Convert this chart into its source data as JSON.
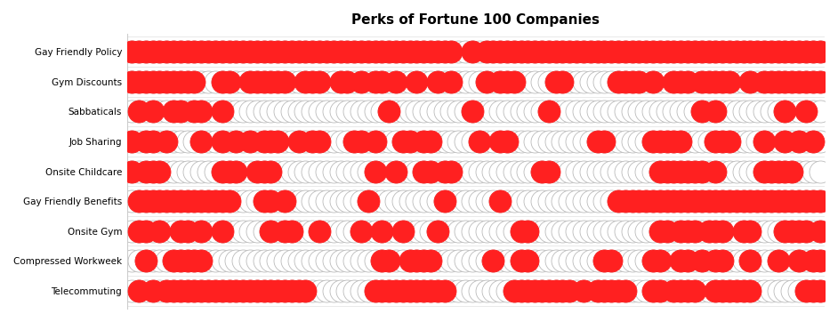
{
  "title": "Perks of Fortune 100 Companies",
  "title_fontsize": 11,
  "categories": [
    "Gay Friendly Policy",
    "Gym Discounts",
    "Sabbaticals",
    "Job Sharing",
    "Onsite Childcare",
    "Gay Friendly Benefits",
    "Onsite Gym",
    "Compressed Workweek",
    "Telecommuting"
  ],
  "n_companies": 100,
  "filled_color": "#FF2020",
  "empty_color": "#FFFFFF",
  "edge_color": "#BBBBBB",
  "marker_size": 18,
  "binary_data": {
    "Gay Friendly Policy": [
      1,
      1,
      1,
      1,
      1,
      1,
      1,
      1,
      1,
      1,
      1,
      1,
      1,
      1,
      1,
      1,
      1,
      1,
      1,
      1,
      1,
      1,
      1,
      1,
      1,
      1,
      1,
      1,
      1,
      1,
      1,
      1,
      1,
      1,
      1,
      1,
      1,
      1,
      1,
      1,
      1,
      1,
      1,
      1,
      1,
      1,
      1,
      0,
      0,
      1,
      0,
      1,
      1,
      1,
      1,
      1,
      1,
      1,
      1,
      1,
      1,
      1,
      1,
      1,
      1,
      1,
      1,
      1,
      1,
      1,
      1,
      1,
      1,
      1,
      1,
      1,
      1,
      1,
      1,
      1,
      1,
      1,
      1,
      1,
      1,
      1,
      1,
      1,
      1,
      1,
      1,
      1,
      1,
      1,
      1,
      1,
      1,
      1,
      1,
      1
    ],
    "Gym Discounts": [
      1,
      1,
      1,
      1,
      1,
      1,
      1,
      1,
      1,
      1,
      0,
      0,
      0,
      1,
      1,
      0,
      0,
      1,
      1,
      1,
      1,
      1,
      1,
      0,
      0,
      1,
      1,
      1,
      0,
      0,
      1,
      1,
      0,
      1,
      0,
      1,
      1,
      0,
      1,
      0,
      0,
      1,
      0,
      0,
      1,
      0,
      1,
      0,
      0,
      0,
      0,
      1,
      0,
      1,
      1,
      1,
      0,
      0,
      0,
      0,
      0,
      1,
      1,
      0,
      0,
      0,
      0,
      0,
      0,
      0,
      1,
      1,
      1,
      1,
      0,
      1,
      0,
      0,
      1,
      1,
      1,
      0,
      1,
      1,
      1,
      1,
      1,
      0,
      0,
      1,
      0,
      1,
      1,
      1,
      1,
      1,
      1,
      1,
      1,
      1
    ],
    "Sabbaticals": [
      0,
      1,
      0,
      1,
      0,
      0,
      1,
      1,
      0,
      1,
      1,
      0,
      0,
      1,
      0,
      0,
      0,
      0,
      0,
      0,
      0,
      0,
      0,
      0,
      0,
      0,
      0,
      0,
      0,
      0,
      0,
      0,
      0,
      0,
      0,
      0,
      0,
      1,
      0,
      0,
      0,
      0,
      0,
      0,
      0,
      0,
      0,
      0,
      0,
      1,
      0,
      0,
      0,
      0,
      0,
      0,
      0,
      0,
      0,
      0,
      1,
      0,
      0,
      0,
      0,
      0,
      0,
      0,
      0,
      0,
      0,
      0,
      0,
      0,
      0,
      0,
      0,
      0,
      0,
      0,
      0,
      0,
      1,
      0,
      1,
      0,
      0,
      0,
      0,
      0,
      0,
      0,
      0,
      0,
      1,
      0,
      0,
      1,
      0,
      0
    ],
    "Job Sharing": [
      1,
      0,
      1,
      1,
      0,
      1,
      0,
      0,
      0,
      0,
      1,
      0,
      0,
      1,
      0,
      1,
      0,
      1,
      0,
      1,
      1,
      1,
      0,
      0,
      1,
      0,
      1,
      1,
      0,
      0,
      0,
      0,
      1,
      1,
      0,
      1,
      0,
      0,
      0,
      1,
      1,
      0,
      1,
      1,
      0,
      0,
      0,
      0,
      0,
      0,
      1,
      0,
      0,
      1,
      1,
      0,
      0,
      0,
      0,
      0,
      0,
      0,
      0,
      0,
      0,
      0,
      0,
      1,
      1,
      0,
      0,
      0,
      0,
      0,
      0,
      1,
      1,
      1,
      1,
      1,
      0,
      0,
      0,
      0,
      1,
      1,
      1,
      0,
      0,
      0,
      0,
      1,
      0,
      0,
      1,
      0,
      1,
      0,
      1,
      0
    ],
    "Onsite Childcare": [
      1,
      0,
      1,
      1,
      1,
      0,
      0,
      0,
      0,
      0,
      0,
      0,
      0,
      1,
      1,
      1,
      0,
      0,
      1,
      1,
      1,
      0,
      0,
      0,
      0,
      0,
      0,
      0,
      0,
      0,
      0,
      0,
      0,
      0,
      0,
      1,
      0,
      0,
      1,
      0,
      0,
      0,
      1,
      1,
      0,
      1,
      1,
      0,
      0,
      0,
      0,
      0,
      0,
      0,
      0,
      0,
      0,
      0,
      0,
      1,
      1,
      0,
      0,
      0,
      0,
      0,
      0,
      0,
      0,
      0,
      0,
      0,
      0,
      0,
      0,
      0,
      1,
      1,
      1,
      1,
      1,
      1,
      1,
      0,
      1,
      0,
      0,
      0,
      0,
      0,
      0,
      1,
      1,
      1,
      1,
      1,
      0,
      0,
      0,
      0
    ],
    "Gay Friendly Benefits": [
      0,
      1,
      1,
      1,
      1,
      1,
      1,
      1,
      1,
      1,
      1,
      1,
      1,
      1,
      1,
      0,
      0,
      0,
      0,
      1,
      1,
      0,
      1,
      0,
      0,
      0,
      0,
      0,
      0,
      0,
      0,
      0,
      0,
      0,
      1,
      0,
      0,
      0,
      0,
      0,
      0,
      0,
      0,
      0,
      0,
      1,
      0,
      0,
      0,
      0,
      0,
      0,
      0,
      1,
      0,
      0,
      0,
      0,
      0,
      0,
      0,
      0,
      0,
      0,
      0,
      0,
      0,
      0,
      0,
      0,
      1,
      1,
      1,
      1,
      1,
      1,
      1,
      1,
      1,
      1,
      1,
      1,
      1,
      1,
      1,
      1,
      1,
      1,
      1,
      1,
      1,
      1,
      1,
      1,
      1,
      1,
      1,
      1,
      1,
      1
    ],
    "Onsite Gym": [
      0,
      1,
      1,
      0,
      1,
      0,
      0,
      1,
      1,
      0,
      1,
      0,
      0,
      1,
      0,
      0,
      0,
      0,
      0,
      0,
      1,
      0,
      1,
      1,
      0,
      0,
      0,
      1,
      0,
      0,
      0,
      0,
      0,
      1,
      0,
      0,
      1,
      0,
      0,
      1,
      0,
      0,
      0,
      0,
      1,
      0,
      0,
      0,
      0,
      0,
      0,
      0,
      0,
      0,
      0,
      0,
      1,
      1,
      0,
      0,
      0,
      0,
      0,
      0,
      0,
      0,
      0,
      0,
      0,
      0,
      0,
      0,
      0,
      0,
      0,
      0,
      1,
      1,
      0,
      1,
      1,
      1,
      0,
      1,
      1,
      1,
      0,
      0,
      1,
      1,
      0,
      0,
      0,
      0,
      1,
      1,
      1,
      1,
      0,
      1
    ],
    "Compressed Workweek": [
      0,
      0,
      1,
      0,
      0,
      0,
      1,
      1,
      1,
      1,
      1,
      0,
      0,
      0,
      0,
      0,
      0,
      0,
      0,
      0,
      0,
      0,
      0,
      0,
      0,
      0,
      0,
      0,
      0,
      0,
      0,
      0,
      0,
      0,
      0,
      0,
      1,
      1,
      0,
      0,
      1,
      1,
      1,
      1,
      0,
      0,
      0,
      0,
      0,
      0,
      0,
      0,
      1,
      0,
      0,
      0,
      1,
      1,
      0,
      0,
      0,
      0,
      0,
      0,
      0,
      0,
      0,
      0,
      1,
      1,
      0,
      0,
      0,
      0,
      0,
      1,
      1,
      0,
      0,
      1,
      1,
      0,
      1,
      0,
      1,
      1,
      0,
      0,
      0,
      1,
      0,
      0,
      0,
      1,
      0,
      0,
      1,
      0,
      1,
      1
    ],
    "Telecommuting": [
      0,
      1,
      0,
      1,
      0,
      1,
      1,
      1,
      1,
      1,
      1,
      1,
      1,
      1,
      1,
      1,
      1,
      1,
      1,
      1,
      1,
      1,
      1,
      1,
      1,
      1,
      0,
      0,
      0,
      0,
      0,
      0,
      0,
      0,
      0,
      1,
      1,
      1,
      1,
      1,
      1,
      1,
      1,
      1,
      1,
      1,
      0,
      0,
      0,
      0,
      0,
      0,
      0,
      0,
      0,
      1,
      1,
      1,
      1,
      1,
      1,
      1,
      1,
      1,
      0,
      1,
      0,
      1,
      1,
      1,
      1,
      1,
      0,
      0,
      0,
      1,
      1,
      0,
      1,
      1,
      1,
      1,
      0,
      0,
      1,
      1,
      1,
      1,
      1,
      1,
      0,
      0,
      0,
      0,
      0,
      0,
      0,
      1,
      1,
      1
    ]
  }
}
